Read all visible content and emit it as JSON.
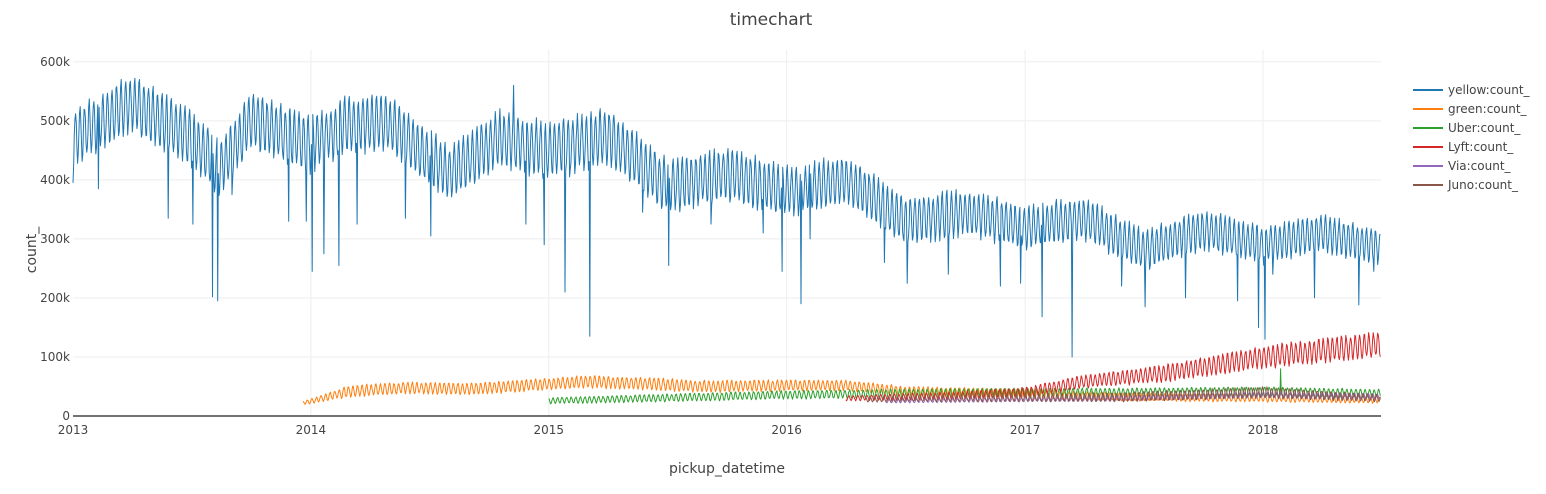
{
  "chart_data": {
    "type": "line",
    "title": "timechart",
    "xlabel": "pickup_datetime",
    "ylabel": "count_",
    "x_range": [
      "2013-01-01",
      "2018-07-01"
    ],
    "ylim": [
      0,
      620000
    ],
    "x_ticks": [
      {
        "label": "2013",
        "date": "2013-01-01"
      },
      {
        "label": "2014",
        "date": "2014-01-01"
      },
      {
        "label": "2015",
        "date": "2015-01-01"
      },
      {
        "label": "2016",
        "date": "2016-01-01"
      },
      {
        "label": "2017",
        "date": "2017-01-01"
      },
      {
        "label": "2018",
        "date": "2018-01-01"
      }
    ],
    "y_ticks": [
      {
        "label": "0",
        "value": 0
      },
      {
        "label": "100k",
        "value": 100000
      },
      {
        "label": "200k",
        "value": 200000
      },
      {
        "label": "300k",
        "value": 300000
      },
      {
        "label": "400k",
        "value": 400000
      },
      {
        "label": "500k",
        "value": 500000
      },
      {
        "label": "600k",
        "value": 600000
      }
    ],
    "grid": true,
    "legend_position": "right",
    "series": [
      {
        "name": "yellow:count_",
        "color": "#1f77b4",
        "start": "2013-01-01",
        "end": "2018-06-30",
        "base": [
          [
            "2013-01-01",
            470000
          ],
          [
            "2013-04-01",
            530000
          ],
          [
            "2013-07-01",
            470000
          ],
          [
            "2013-08-15",
            420000
          ],
          [
            "2013-10-01",
            500000
          ],
          [
            "2013-12-31",
            460000
          ],
          [
            "2014-03-01",
            495000
          ],
          [
            "2014-05-01",
            495000
          ],
          [
            "2014-08-01",
            410000
          ],
          [
            "2014-10-15",
            470000
          ],
          [
            "2015-01-01",
            450000
          ],
          [
            "2015-04-01",
            475000
          ],
          [
            "2015-07-01",
            390000
          ],
          [
            "2015-10-01",
            410000
          ],
          [
            "2016-01-01",
            380000
          ],
          [
            "2016-04-01",
            400000
          ],
          [
            "2016-07-01",
            330000
          ],
          [
            "2016-10-01",
            345000
          ],
          [
            "2017-01-01",
            320000
          ],
          [
            "2017-04-01",
            335000
          ],
          [
            "2017-07-01",
            280000
          ],
          [
            "2017-10-01",
            315000
          ],
          [
            "2018-01-01",
            290000
          ],
          [
            "2018-04-01",
            310000
          ],
          [
            "2018-06-30",
            285000
          ]
        ],
        "amplitude": [
          [
            "2013-01-01",
            45000
          ],
          [
            "2015-01-01",
            45000
          ],
          [
            "2016-01-01",
            40000
          ],
          [
            "2017-01-01",
            35000
          ],
          [
            "2018-06-30",
            28000
          ]
        ],
        "dips": [
          [
            "2013-01-01",
            395000
          ],
          [
            "2013-02-09",
            385000
          ],
          [
            "2013-05-27",
            335000
          ],
          [
            "2013-07-04",
            325000
          ],
          [
            "2013-08-03",
            202000
          ],
          [
            "2013-08-11",
            195000
          ],
          [
            "2013-09-02",
            375000
          ],
          [
            "2013-11-28",
            330000
          ],
          [
            "2013-12-25",
            330000
          ],
          [
            "2014-01-03",
            245000
          ],
          [
            "2014-01-21",
            275000
          ],
          [
            "2014-02-13",
            255000
          ],
          [
            "2014-03-13",
            325000
          ],
          [
            "2014-05-26",
            335000
          ],
          [
            "2014-07-04",
            305000
          ],
          [
            "2014-11-08",
            560000
          ],
          [
            "2014-11-27",
            325000
          ],
          [
            "2014-12-25",
            290000
          ],
          [
            "2015-01-26",
            210000
          ],
          [
            "2015-02-02",
            405000
          ],
          [
            "2015-03-05",
            135000
          ],
          [
            "2015-05-25",
            345000
          ],
          [
            "2015-07-04",
            255000
          ],
          [
            "2015-09-07",
            325000
          ],
          [
            "2015-11-26",
            310000
          ],
          [
            "2015-12-25",
            245000
          ],
          [
            "2016-01-23",
            190000
          ],
          [
            "2016-02-06",
            300000
          ],
          [
            "2016-05-30",
            260000
          ],
          [
            "2016-07-04",
            225000
          ],
          [
            "2016-09-05",
            240000
          ],
          [
            "2016-11-24",
            220000
          ],
          [
            "2016-12-25",
            225000
          ],
          [
            "2017-01-27",
            168000
          ],
          [
            "2017-03-14",
            100000
          ],
          [
            "2017-05-29",
            220000
          ],
          [
            "2017-07-04",
            185000
          ],
          [
            "2017-09-04",
            200000
          ],
          [
            "2017-11-23",
            195000
          ],
          [
            "2017-12-25",
            150000
          ],
          [
            "2018-01-04",
            130000
          ],
          [
            "2018-01-16",
            240000
          ],
          [
            "2018-03-21",
            200000
          ],
          [
            "2018-05-28",
            188000
          ],
          [
            "2018-06-20",
            245000
          ]
        ]
      },
      {
        "name": "green:count_",
        "color": "#ff7f0e",
        "start": "2013-12-20",
        "end": "2018-06-30",
        "base": [
          [
            "2013-12-20",
            22000
          ],
          [
            "2014-03-01",
            42000
          ],
          [
            "2014-06-01",
            48000
          ],
          [
            "2014-09-01",
            46000
          ],
          [
            "2014-12-01",
            52000
          ],
          [
            "2015-03-01",
            58000
          ],
          [
            "2015-06-01",
            55000
          ],
          [
            "2015-09-01",
            50000
          ],
          [
            "2016-01-01",
            52000
          ],
          [
            "2016-04-01",
            52000
          ],
          [
            "2016-07-01",
            42000
          ],
          [
            "2017-01-01",
            38000
          ],
          [
            "2017-07-01",
            32000
          ],
          [
            "2018-01-01",
            30000
          ],
          [
            "2018-06-30",
            27000
          ]
        ],
        "amplitude": [
          [
            "2013-12-20",
            3000
          ],
          [
            "2014-03-01",
            9000
          ],
          [
            "2015-06-01",
            10000
          ],
          [
            "2016-06-01",
            8000
          ],
          [
            "2018-06-30",
            5000
          ]
        ],
        "dips": []
      },
      {
        "name": "Uber:count_",
        "color": "#2ca02c",
        "start": "2015-01-01",
        "end": "2018-06-30",
        "base": [
          [
            "2015-01-01",
            26000
          ],
          [
            "2015-06-01",
            30000
          ],
          [
            "2016-01-01",
            36000
          ],
          [
            "2016-06-01",
            38000
          ],
          [
            "2017-01-01",
            40000
          ],
          [
            "2017-06-01",
            40000
          ],
          [
            "2018-01-01",
            42000
          ],
          [
            "2018-06-30",
            38000
          ]
        ],
        "amplitude": [
          [
            "2015-01-01",
            5000
          ],
          [
            "2016-01-01",
            7000
          ],
          [
            "2018-06-30",
            7000
          ]
        ],
        "dips": [
          [
            "2018-01-28",
            80000
          ]
        ]
      },
      {
        "name": "Lyft:count_",
        "color": "#d62728",
        "start": "2016-04-01",
        "end": "2018-06-30",
        "base": [
          [
            "2016-04-01",
            30000
          ],
          [
            "2016-09-01",
            34000
          ],
          [
            "2017-01-01",
            40000
          ],
          [
            "2017-04-01",
            58000
          ],
          [
            "2017-08-01",
            72000
          ],
          [
            "2018-01-01",
            100000
          ],
          [
            "2018-06-30",
            122000
          ]
        ],
        "amplitude": [
          [
            "2016-04-01",
            4000
          ],
          [
            "2017-01-01",
            8000
          ],
          [
            "2018-01-01",
            18000
          ],
          [
            "2018-06-30",
            20000
          ]
        ],
        "dips": []
      },
      {
        "name": "Via:count_",
        "color": "#9467bd",
        "start": "2016-06-01",
        "end": "2018-06-30",
        "base": [
          [
            "2016-06-01",
            25000
          ],
          [
            "2017-06-01",
            30000
          ],
          [
            "2018-01-01",
            36000
          ],
          [
            "2018-06-30",
            33000
          ]
        ],
        "amplitude": [
          [
            "2016-06-01",
            3000
          ],
          [
            "2018-06-30",
            5000
          ]
        ],
        "dips": []
      },
      {
        "name": "Juno:count_",
        "color": "#8c564b",
        "start": "2016-05-01",
        "end": "2018-06-30",
        "base": [
          [
            "2016-05-01",
            28000
          ],
          [
            "2016-10-01",
            30000
          ],
          [
            "2017-06-01",
            32000
          ],
          [
            "2018-01-01",
            40000
          ],
          [
            "2018-06-30",
            30000
          ]
        ],
        "amplitude": [
          [
            "2016-05-01",
            4000
          ],
          [
            "2018-01-01",
            9000
          ],
          [
            "2018-06-30",
            6000
          ]
        ],
        "dips": []
      }
    ]
  }
}
